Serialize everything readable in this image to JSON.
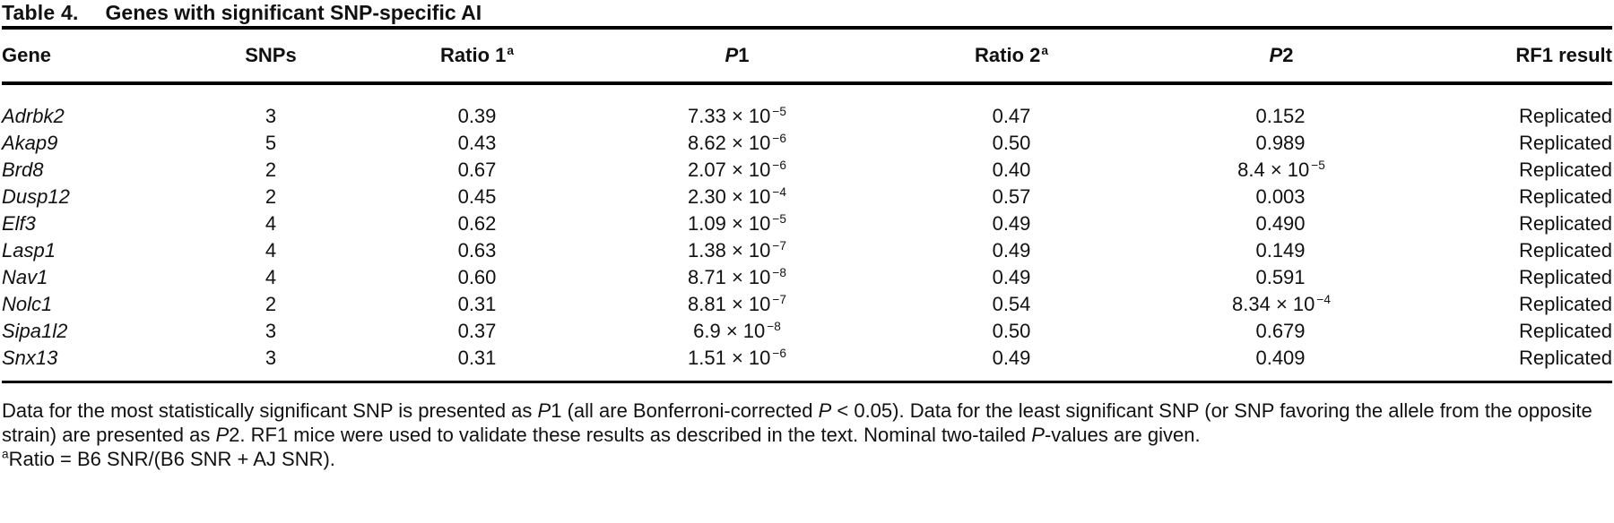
{
  "caption": {
    "label": "Table 4.",
    "text": "Genes with significant SNP-specific AI"
  },
  "colors": {
    "text": "#111111",
    "rule": "#000000",
    "background": "#ffffff"
  },
  "table": {
    "headers": {
      "gene": "Gene",
      "snps": "SNPs",
      "ratio1": "Ratio 1",
      "ratio1_sup": "a",
      "p1_italic": "P",
      "p1_num": "1",
      "ratio2": "Ratio 2",
      "ratio2_sup": "a",
      "p2_italic": "P",
      "p2_num": "2",
      "rf1": "RF1 result"
    },
    "rows": [
      {
        "gene": "Adrbk2",
        "snps": "3",
        "ratio1": "0.39",
        "p1_base": "7.33 × 10",
        "p1_sup": "−5",
        "ratio2": "0.47",
        "p2_base": "0.152",
        "p2_sup": "",
        "rf1": "Replicated"
      },
      {
        "gene": "Akap9",
        "snps": "5",
        "ratio1": "0.43",
        "p1_base": "8.62 × 10",
        "p1_sup": "−6",
        "ratio2": "0.50",
        "p2_base": "0.989",
        "p2_sup": "",
        "rf1": "Replicated"
      },
      {
        "gene": "Brd8",
        "snps": "2",
        "ratio1": "0.67",
        "p1_base": "2.07 × 10",
        "p1_sup": "−6",
        "ratio2": "0.40",
        "p2_base": "8.4 × 10",
        "p2_sup": "−5",
        "rf1": "Replicated"
      },
      {
        "gene": "Dusp12",
        "snps": "2",
        "ratio1": "0.45",
        "p1_base": "2.30 × 10",
        "p1_sup": "−4",
        "ratio2": "0.57",
        "p2_base": "0.003",
        "p2_sup": "",
        "rf1": "Replicated"
      },
      {
        "gene": "Elf3",
        "snps": "4",
        "ratio1": "0.62",
        "p1_base": "1.09 × 10",
        "p1_sup": "−5",
        "ratio2": "0.49",
        "p2_base": "0.490",
        "p2_sup": "",
        "rf1": "Replicated"
      },
      {
        "gene": "Lasp1",
        "snps": "4",
        "ratio1": "0.63",
        "p1_base": "1.38 × 10",
        "p1_sup": "−7",
        "ratio2": "0.49",
        "p2_base": "0.149",
        "p2_sup": "",
        "rf1": "Replicated"
      },
      {
        "gene": "Nav1",
        "snps": "4",
        "ratio1": "0.60",
        "p1_base": "8.71 × 10",
        "p1_sup": "−8",
        "ratio2": "0.49",
        "p2_base": "0.591",
        "p2_sup": "",
        "rf1": "Replicated"
      },
      {
        "gene": "Nolc1",
        "snps": "2",
        "ratio1": "0.31",
        "p1_base": "8.81 × 10",
        "p1_sup": "−7",
        "ratio2": "0.54",
        "p2_base": "8.34 × 10",
        "p2_sup": "−4",
        "rf1": "Replicated"
      },
      {
        "gene": "Sipa1l2",
        "snps": "3",
        "ratio1": "0.37",
        "p1_base": "6.9 × 10",
        "p1_sup": "−8",
        "ratio2": "0.50",
        "p2_base": "0.679",
        "p2_sup": "",
        "rf1": "Replicated"
      },
      {
        "gene": "Snx13",
        "snps": "3",
        "ratio1": "0.31",
        "p1_base": "1.51 × 10",
        "p1_sup": "−6",
        "ratio2": "0.49",
        "p2_base": "0.409",
        "p2_sup": "",
        "rf1": "Replicated"
      }
    ]
  },
  "footnote": {
    "p_label": "P",
    "seg1": "Data for the most statistically significant SNP is presented as ",
    "seg2": "1 (all are Bonferroni-corrected ",
    "seg3": " < 0.05). Data for the least significant SNP (or SNP favoring the allele from the opposite strain) are presented as ",
    "seg4": "2. RF1 mice were used to validate these results as described in the text. Nominal two-tailed ",
    "seg5": "-values are given."
  },
  "footnote_a": {
    "sup": "a",
    "text": "Ratio = B6 SNR/(B6 SNR + AJ SNR)."
  }
}
